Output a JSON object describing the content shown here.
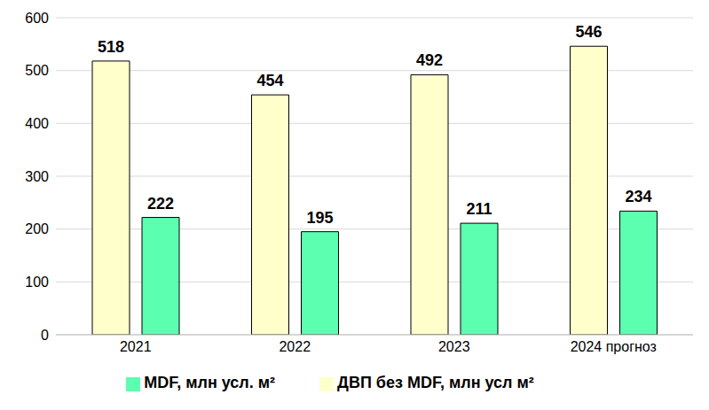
{
  "chart_data": {
    "type": "bar",
    "categories": [
      "2021",
      "2022",
      "2023",
      "2024 прогноз"
    ],
    "series": [
      {
        "name": "ДВП без MDF, млн усл м²",
        "color": "#ffffcc",
        "values": [
          518,
          454,
          492,
          546
        ]
      },
      {
        "name": "MDF, млн усл. м²",
        "color": "#5cffb0",
        "values": [
          222,
          195,
          211,
          234
        ]
      }
    ],
    "ylim": [
      0,
      600
    ],
    "yticks": [
      0,
      100,
      200,
      300,
      400,
      500,
      600
    ],
    "grid": true,
    "legend": "bottom",
    "data_labels": true
  }
}
